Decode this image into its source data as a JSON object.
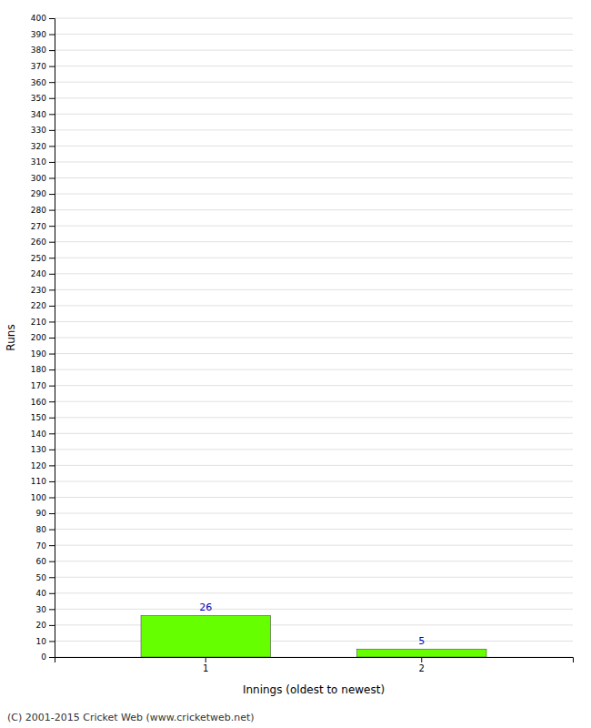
{
  "chart_data": {
    "type": "bar",
    "categories": [
      "1",
      "2"
    ],
    "values": [
      26,
      5
    ],
    "color": "#66ff00",
    "xlabel": "Innings (oldest to newest)",
    "ylabel": "Runs",
    "ylim": [
      0,
      400
    ],
    "yticks": [
      0,
      10,
      20,
      30,
      40,
      50,
      60,
      70,
      80,
      90,
      100,
      110,
      120,
      130,
      140,
      150,
      160,
      170,
      180,
      190,
      200,
      210,
      220,
      230,
      240,
      250,
      260,
      270,
      280,
      290,
      300,
      310,
      320,
      330,
      340,
      350,
      360,
      370,
      380,
      390,
      400
    ],
    "grid": true,
    "data_labels": true,
    "annotations": [
      "(C) 2001-2015 Cricket Web (www.cricketweb.net)"
    ]
  }
}
